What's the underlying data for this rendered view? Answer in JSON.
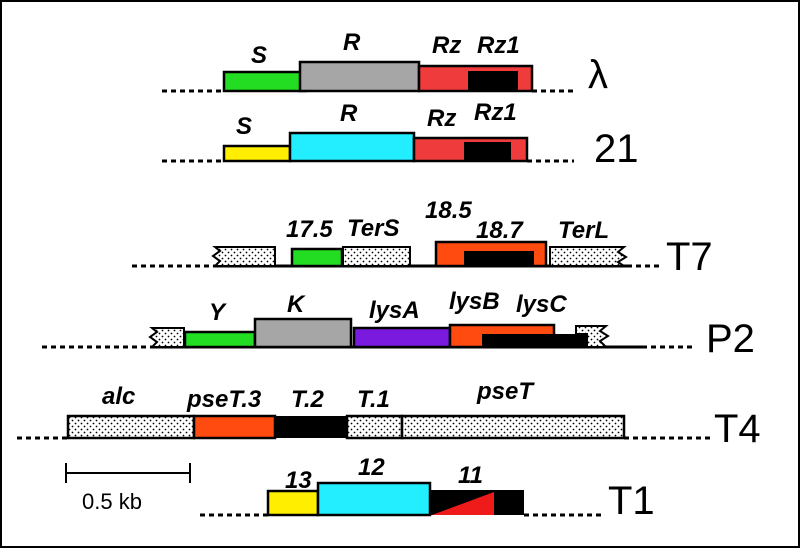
{
  "colors": {
    "green": "#22dd22",
    "gray": "#a6a6a6",
    "red": "#ef3b3b",
    "yellow": "#ffee00",
    "cyan": "#22eeff",
    "orange": "#ff4a10",
    "purple": "#7a1adf",
    "black": "#000000"
  },
  "rows": [
    {
      "phage": "λ",
      "genes": [
        {
          "label": "S",
          "color": "green"
        },
        {
          "label": "R",
          "color": "gray"
        },
        {
          "label": "Rz",
          "color": "red"
        },
        {
          "label": "Rz1",
          "color": "black"
        }
      ]
    },
    {
      "phage": "21",
      "genes": [
        {
          "label": "S",
          "color": "yellow"
        },
        {
          "label": "R",
          "color": "cyan"
        },
        {
          "label": "Rz",
          "color": "red"
        },
        {
          "label": "Rz1",
          "color": "black"
        }
      ]
    },
    {
      "phage": "T7",
      "genes": [
        {
          "label": "17.5",
          "color": "green"
        },
        {
          "label": "TerS",
          "color": "stippled"
        },
        {
          "label": "18.5",
          "color": "orange"
        },
        {
          "label": "18.7",
          "color": "black"
        },
        {
          "label": "TerL",
          "color": "stippled"
        }
      ]
    },
    {
      "phage": "P2",
      "genes": [
        {
          "label": "Y",
          "color": "green"
        },
        {
          "label": "K",
          "color": "gray"
        },
        {
          "label": "lysA",
          "color": "purple"
        },
        {
          "label": "lysB",
          "color": "orange"
        },
        {
          "label": "lysC",
          "color": "black"
        }
      ]
    },
    {
      "phage": "T4",
      "genes": [
        {
          "label": "alc",
          "color": "stippled"
        },
        {
          "label": "pseT.3",
          "color": "orange"
        },
        {
          "label": "T.2",
          "color": "black"
        },
        {
          "label": "T.1",
          "color": "stippled"
        },
        {
          "label": "pseT",
          "color": "stippled"
        }
      ]
    },
    {
      "phage": "T1",
      "genes": [
        {
          "label": "13",
          "color": "yellow"
        },
        {
          "label": "12",
          "color": "cyan"
        },
        {
          "label": "11",
          "color": "red"
        }
      ]
    }
  ],
  "scale_bar": {
    "label": "0.5 kb"
  }
}
